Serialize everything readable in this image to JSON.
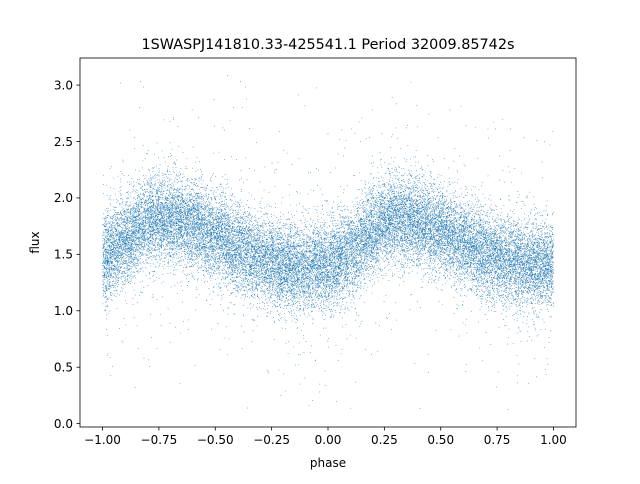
{
  "chart_data": {
    "type": "scatter",
    "title": "1SWASPJ141810.33-425541.1 Period 32009.85742s",
    "xlabel": "phase",
    "ylabel": "flux",
    "xlim": [
      -1.1,
      1.1
    ],
    "ylim": [
      -0.03,
      3.24
    ],
    "x_ticks": [
      -1.0,
      -0.75,
      -0.5,
      -0.25,
      0.0,
      0.25,
      0.5,
      0.75,
      1.0
    ],
    "x_tick_labels": [
      "−1.00",
      "−0.75",
      "−0.50",
      "−0.25",
      "0.00",
      "0.25",
      "0.50",
      "0.75",
      "1.00"
    ],
    "y_ticks": [
      0.0,
      0.5,
      1.0,
      1.5,
      2.0,
      2.5,
      3.0
    ],
    "y_tick_labels": [
      "0.0",
      "0.5",
      "1.0",
      "1.5",
      "2.0",
      "2.5",
      "3.0"
    ],
    "grid": false,
    "legend": "none",
    "series_color": "#1f77b4",
    "x_range": [
      -1.0,
      1.0
    ],
    "y_range": [
      0.12,
      3.1
    ],
    "trend": {
      "phase": [
        -1.0,
        -0.9,
        -0.8,
        -0.75,
        -0.7,
        -0.6,
        -0.5,
        -0.4,
        -0.3,
        -0.2,
        -0.1,
        0.0,
        0.1,
        0.2,
        0.25,
        0.3,
        0.4,
        0.5,
        0.6,
        0.7,
        0.8,
        0.9,
        1.0
      ],
      "flux": [
        1.45,
        1.63,
        1.77,
        1.8,
        1.82,
        1.76,
        1.67,
        1.56,
        1.46,
        1.4,
        1.38,
        1.41,
        1.52,
        1.7,
        1.78,
        1.83,
        1.79,
        1.7,
        1.6,
        1.5,
        1.43,
        1.4,
        1.42
      ]
    },
    "scatter_spread": 0.19,
    "outlier_fraction": 0.04,
    "point_count": 26000
  }
}
